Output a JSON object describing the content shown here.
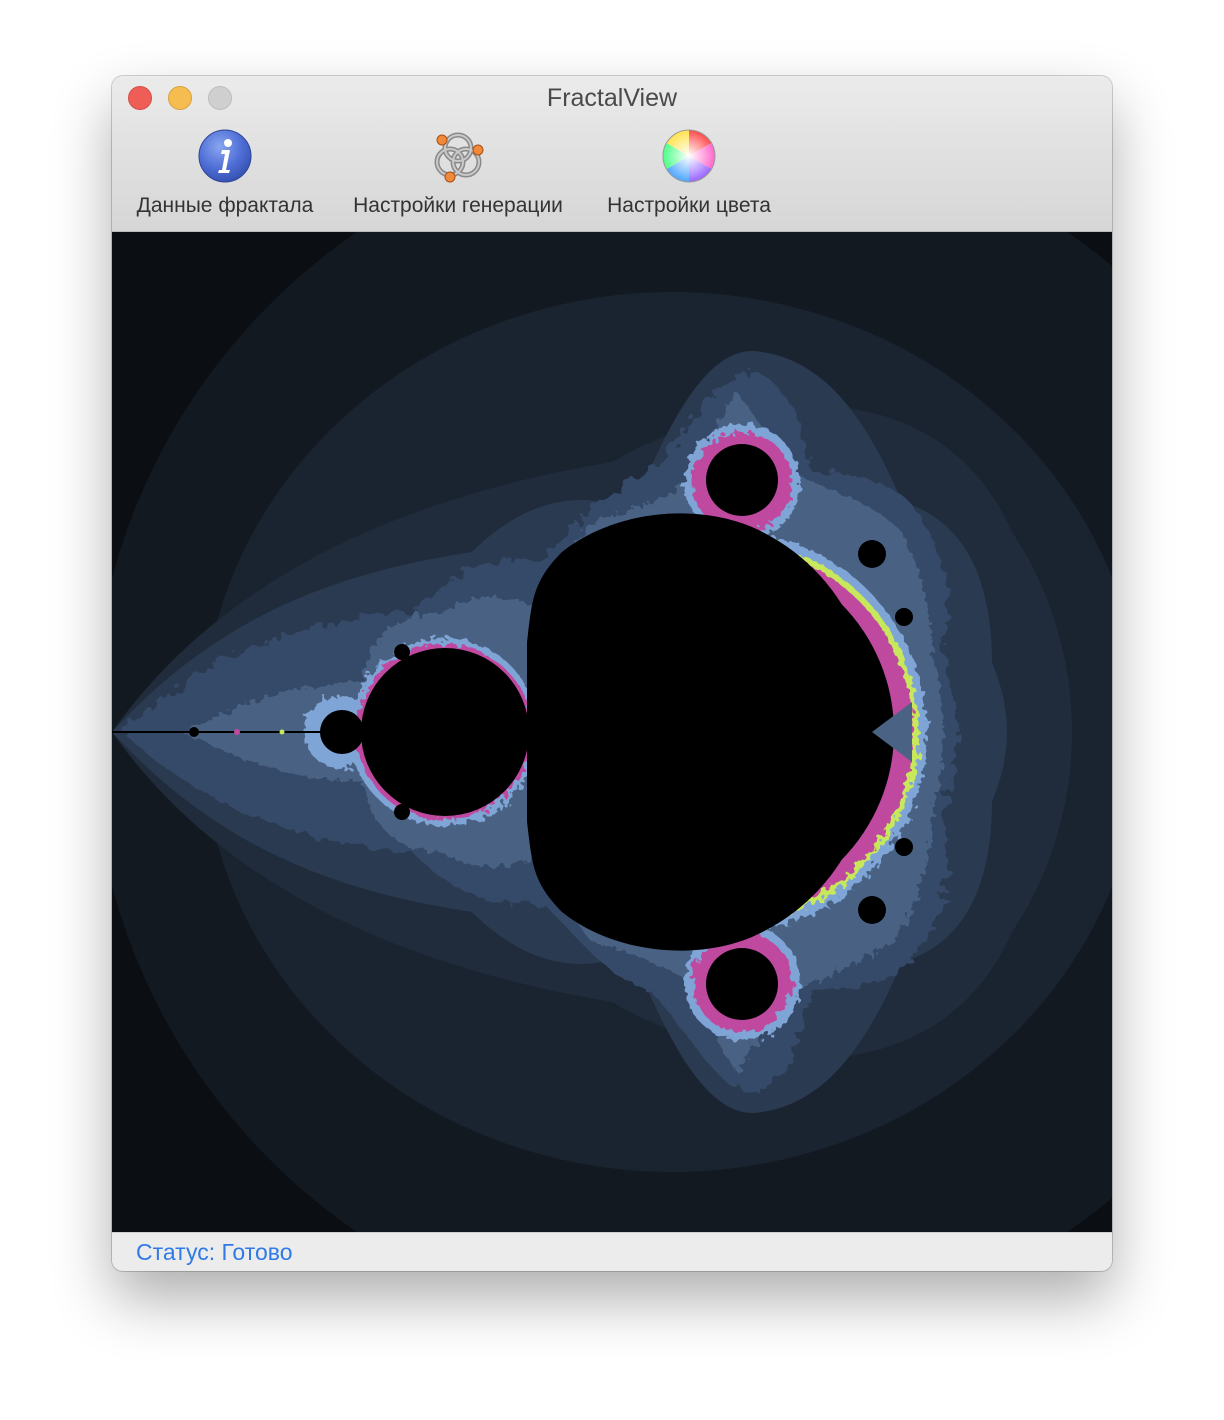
{
  "window": {
    "title": "FractalView",
    "controls": [
      "close",
      "minimize",
      "zoom"
    ]
  },
  "toolbar": {
    "items": [
      {
        "label": "Данные фрактала",
        "icon": "info-icon"
      },
      {
        "label": "Настройки генерации",
        "icon": "generation-settings-icon"
      },
      {
        "label": "Настройки цвета",
        "icon": "color-wheel-icon"
      }
    ]
  },
  "fractal": {
    "type": "Mandelbrot set",
    "colors": {
      "set": "#000000",
      "background_outer": "#0b0f14",
      "band_1": "#151c25",
      "band_2": "#1c2533",
      "band_3": "#233042",
      "band_4": "#2c3b52",
      "band_5": "#384b66",
      "band_6": "#4a6283",
      "edge_blue": "#7fa5d6",
      "edge_green": "#c7e85a",
      "edge_magenta": "#c04aa0"
    }
  },
  "status": {
    "text": "Статус: Готово",
    "color": "#2f7ae5"
  },
  "accent": {
    "close": "#ee5e57",
    "minimize": "#f5bd4f",
    "zoom": "#cfcfcf"
  }
}
